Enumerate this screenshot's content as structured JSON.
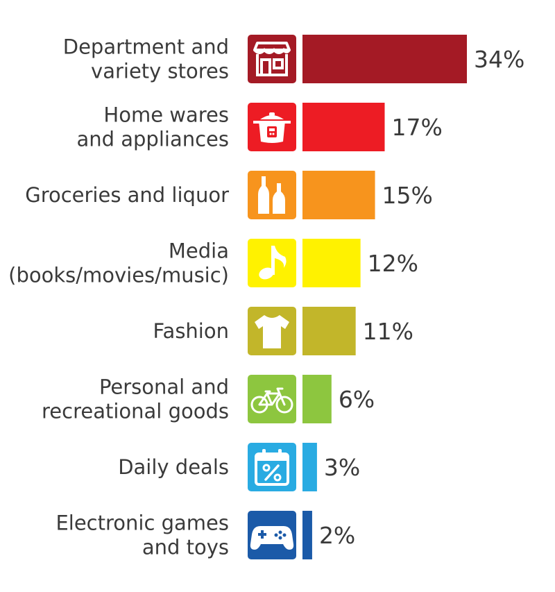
{
  "chart_data": {
    "type": "bar",
    "orientation": "horizontal",
    "unit": "%",
    "xlim": [
      0,
      34
    ],
    "grid": false,
    "legend": "none",
    "categories": [
      "Department and variety stores",
      "Home wares and appliances",
      "Groceries and liquor",
      "Media (books/movies/music)",
      "Fashion",
      "Personal and recreational goods",
      "Daily deals",
      "Electronic games and toys"
    ],
    "label_lines": [
      [
        "Department and",
        "variety stores"
      ],
      [
        "Home wares",
        "and appliances"
      ],
      [
        "Groceries and liquor"
      ],
      [
        "Media",
        "(books/movies/music)"
      ],
      [
        "Fashion"
      ],
      [
        "Personal and",
        "recreational goods"
      ],
      [
        "Daily deals"
      ],
      [
        "Electronic games",
        "and toys"
      ]
    ],
    "values": [
      34,
      17,
      15,
      12,
      11,
      6,
      3,
      2
    ],
    "value_labels": [
      "34%",
      "17%",
      "15%",
      "12%",
      "11%",
      "6%",
      "3%",
      "2%"
    ],
    "colors": [
      "#a41a25",
      "#ed1c24",
      "#f7941d",
      "#fff200",
      "#c2b62a",
      "#8dc63f",
      "#29abe2",
      "#1b5aa8"
    ],
    "icons": [
      "storefront-icon",
      "rice-cooker-icon",
      "bottles-icon",
      "music-note-icon",
      "tshirt-icon",
      "bicycle-icon",
      "calendar-percent-icon",
      "gamepad-icon"
    ]
  }
}
